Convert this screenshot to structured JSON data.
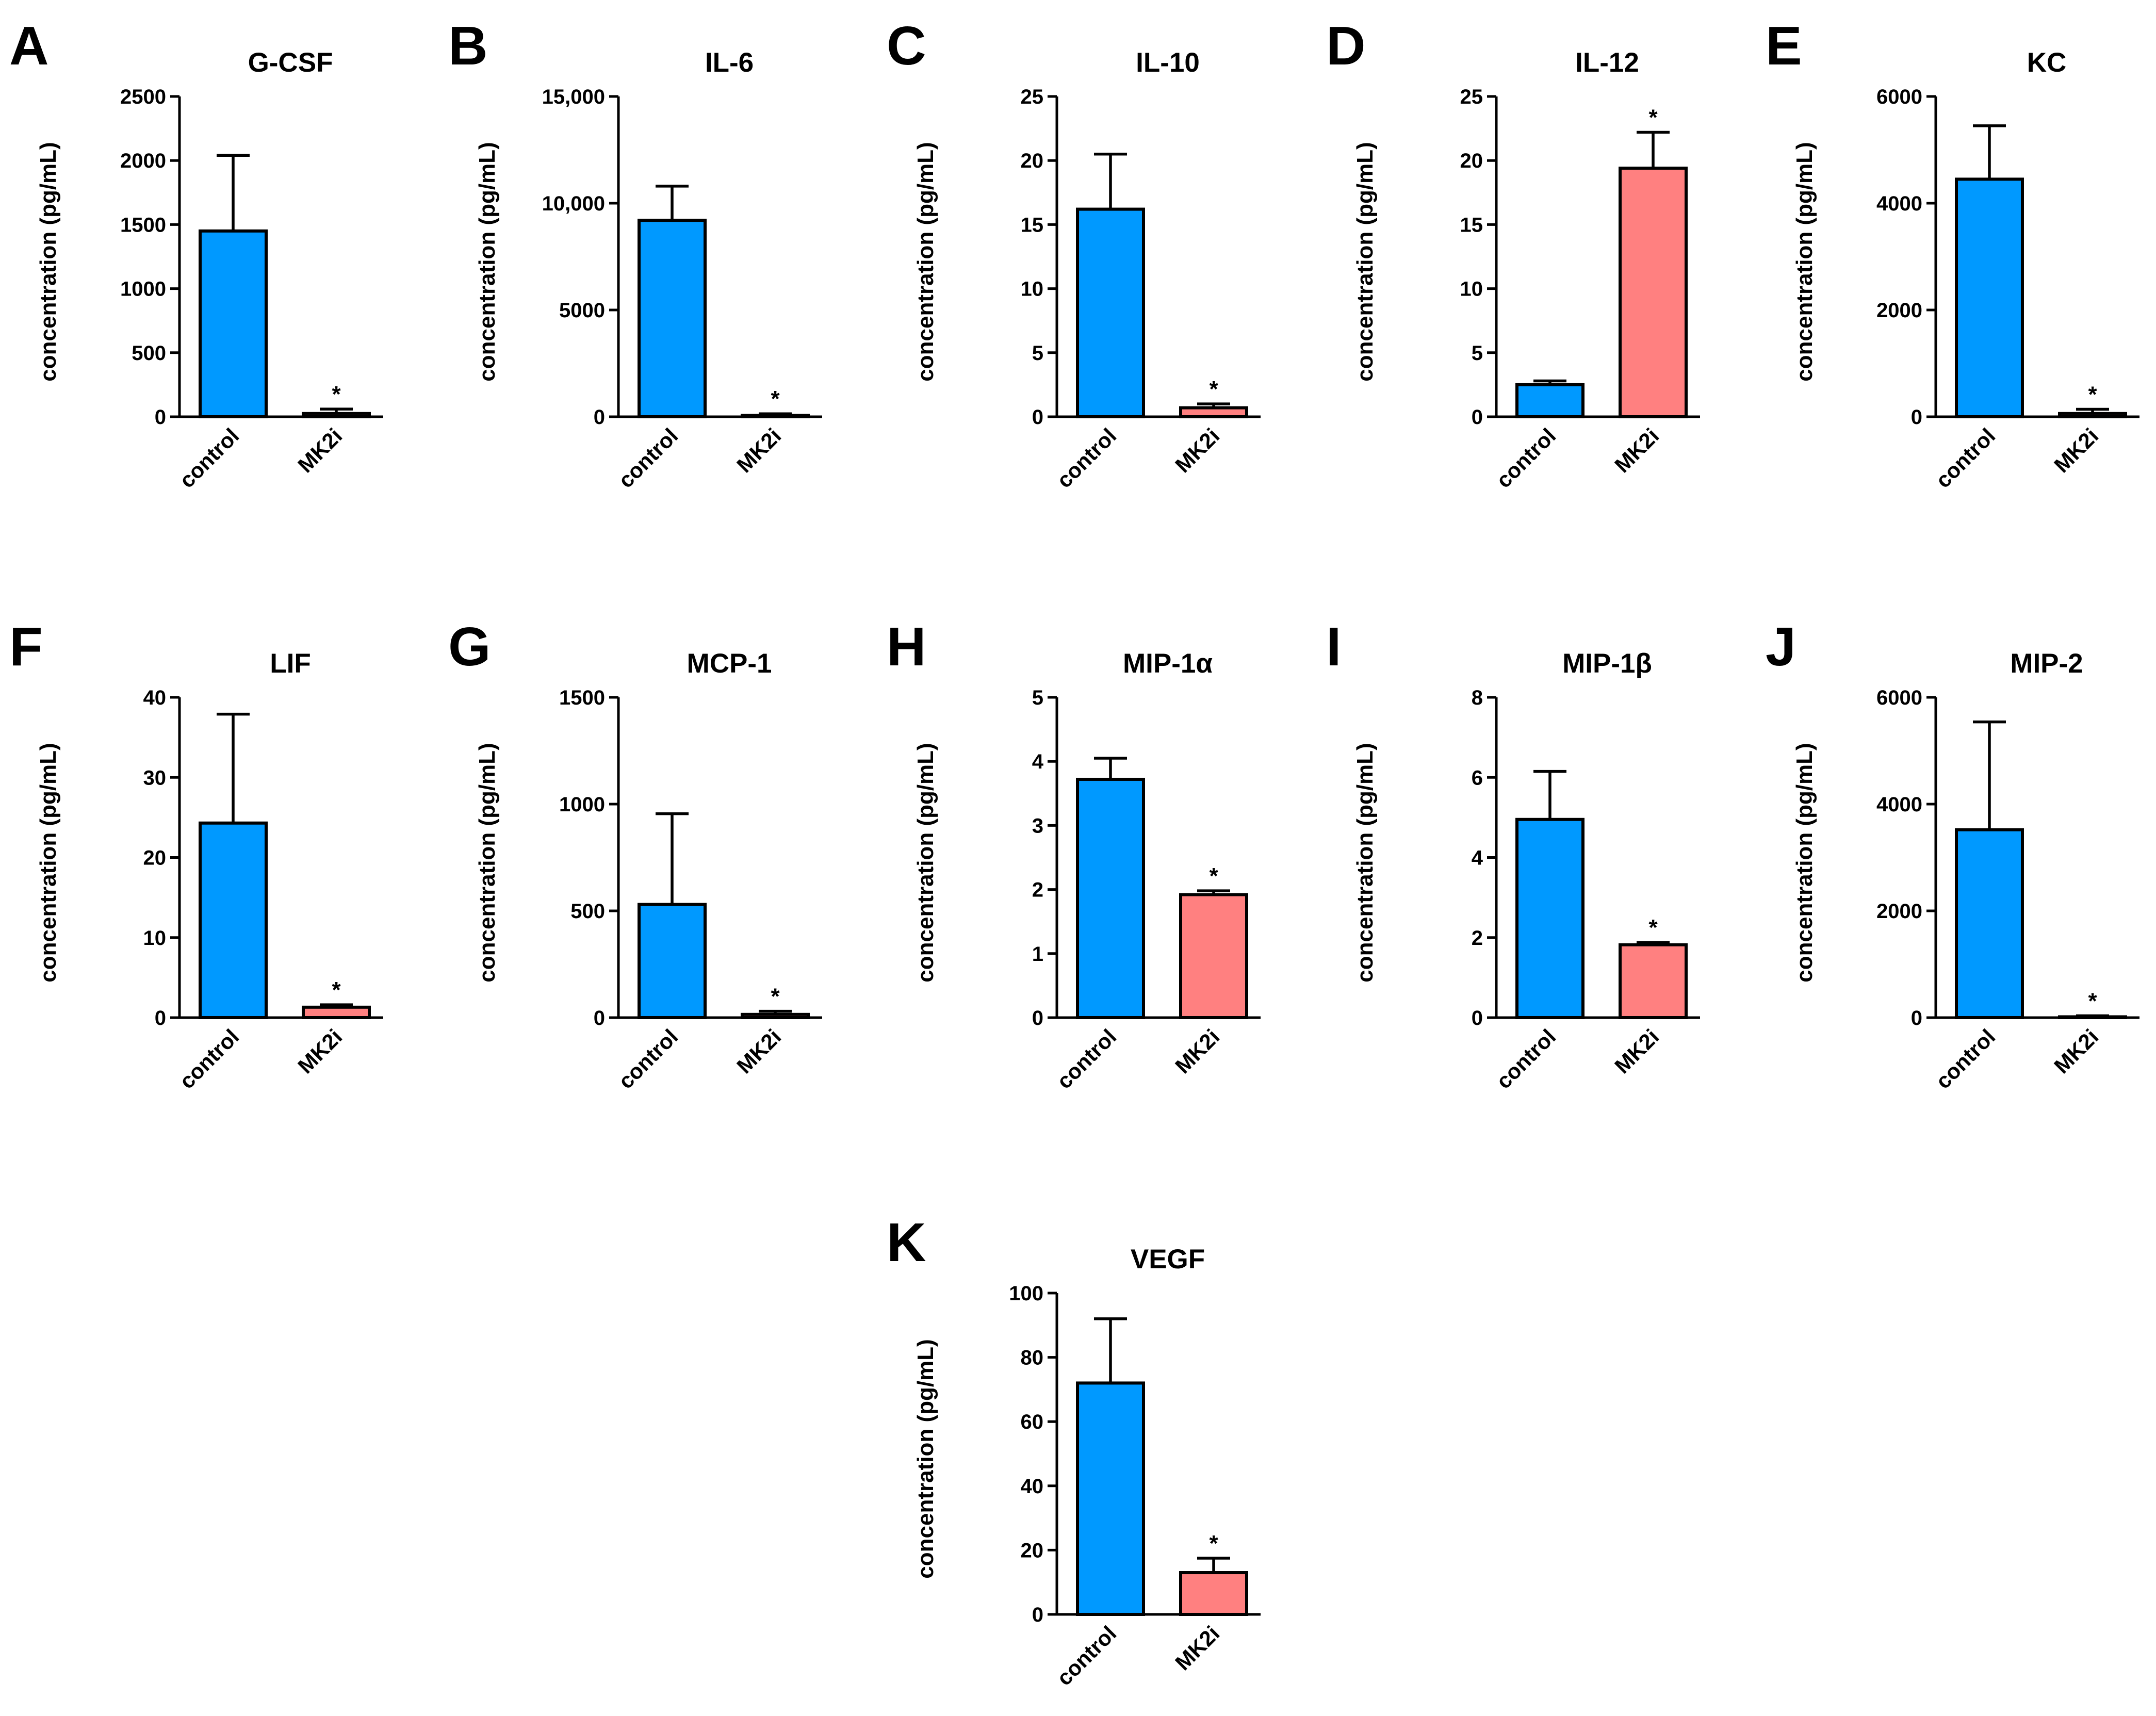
{
  "chart_data": [
    {
      "panel": "A",
      "type": "bar",
      "title": "G-CSF",
      "ylabel": "concentration (pg/mL)",
      "categories": [
        "control",
        "MK2i"
      ],
      "values": [
        1450,
        25
      ],
      "errors": [
        590,
        35
      ],
      "colors": [
        "#0099ff",
        "#ff8080"
      ],
      "ylim": [
        0,
        2500
      ],
      "yticks": [
        0,
        500,
        1000,
        1500,
        2000,
        2500
      ],
      "ytick_labels": [
        "0",
        "500",
        "1000",
        "1500",
        "2000",
        "2500"
      ],
      "significance": [
        "",
        "*"
      ]
    },
    {
      "panel": "B",
      "type": "bar",
      "title": "IL-6",
      "ylabel": "concentration (pg/mL)",
      "categories": [
        "control",
        "MK2i"
      ],
      "values": [
        9200,
        60
      ],
      "errors": [
        1600,
        80
      ],
      "colors": [
        "#0099ff",
        "#ff8080"
      ],
      "ylim": [
        0,
        15000
      ],
      "yticks": [
        0,
        5000,
        10000,
        15000
      ],
      "ytick_labels": [
        "0",
        "5000",
        "10,000",
        "15,000"
      ],
      "significance": [
        "",
        "*"
      ]
    },
    {
      "panel": "C",
      "type": "bar",
      "title": "IL-10",
      "ylabel": "concentration (pg/mL)",
      "categories": [
        "control",
        "MK2i"
      ],
      "values": [
        16.2,
        0.7
      ],
      "errors": [
        4.3,
        0.3
      ],
      "colors": [
        "#0099ff",
        "#ff8080"
      ],
      "ylim": [
        0,
        25
      ],
      "yticks": [
        0,
        5,
        10,
        15,
        20,
        25
      ],
      "ytick_labels": [
        "0",
        "5",
        "10",
        "15",
        "20",
        "25"
      ],
      "significance": [
        "",
        "*"
      ]
    },
    {
      "panel": "D",
      "type": "bar",
      "title": "IL-12",
      "ylabel": "concentration (pg/mL)",
      "categories": [
        "control",
        "MK2i"
      ],
      "values": [
        2.5,
        19.4
      ],
      "errors": [
        0.3,
        2.8
      ],
      "colors": [
        "#0099ff",
        "#ff8080"
      ],
      "ylim": [
        0,
        25
      ],
      "yticks": [
        0,
        5,
        10,
        15,
        20,
        25
      ],
      "ytick_labels": [
        "0",
        "5",
        "10",
        "15",
        "20",
        "25"
      ],
      "significance": [
        "",
        "*"
      ]
    },
    {
      "panel": "E",
      "type": "bar",
      "title": "KC",
      "ylabel": "concentration (pg/mL)",
      "categories": [
        "control",
        "MK2i"
      ],
      "values": [
        4450,
        60
      ],
      "errors": [
        1000,
        80
      ],
      "colors": [
        "#0099ff",
        "#ff8080"
      ],
      "ylim": [
        0,
        6000
      ],
      "yticks": [
        0,
        2000,
        4000,
        6000
      ],
      "ytick_labels": [
        "0",
        "2000",
        "4000",
        "6000"
      ],
      "significance": [
        "",
        "*"
      ]
    },
    {
      "panel": "F",
      "type": "bar",
      "title": "LIF",
      "ylabel": "concentration (pg/mL)",
      "categories": [
        "control",
        "MK2i"
      ],
      "values": [
        24.3,
        1.3
      ],
      "errors": [
        13.6,
        0.3
      ],
      "colors": [
        "#0099ff",
        "#ff8080"
      ],
      "ylim": [
        0,
        40
      ],
      "yticks": [
        0,
        10,
        20,
        30,
        40
      ],
      "ytick_labels": [
        "0",
        "10",
        "20",
        "30",
        "40"
      ],
      "significance": [
        "",
        "*"
      ]
    },
    {
      "panel": "G",
      "type": "bar",
      "title": "MCP-1",
      "ylabel": "concentration (pg/mL)",
      "categories": [
        "control",
        "MK2i"
      ],
      "values": [
        530,
        15
      ],
      "errors": [
        425,
        15
      ],
      "colors": [
        "#0099ff",
        "#ff8080"
      ],
      "ylim": [
        0,
        1500
      ],
      "yticks": [
        0,
        500,
        1000,
        1500
      ],
      "ytick_labels": [
        "0",
        "500",
        "1000",
        "1500"
      ],
      "significance": [
        "",
        "*"
      ]
    },
    {
      "panel": "H",
      "type": "bar",
      "title": "MIP-1α",
      "ylabel": "concentration (pg/mL)",
      "categories": [
        "control",
        "MK2i"
      ],
      "values": [
        3.72,
        1.92
      ],
      "errors": [
        0.33,
        0.06
      ],
      "colors": [
        "#0099ff",
        "#ff8080"
      ],
      "ylim": [
        0,
        5
      ],
      "yticks": [
        0,
        1,
        2,
        3,
        4,
        5
      ],
      "ytick_labels": [
        "0",
        "1",
        "2",
        "3",
        "4",
        "5"
      ],
      "significance": [
        "",
        "*"
      ]
    },
    {
      "panel": "I",
      "type": "bar",
      "title": "MIP-1β",
      "ylabel": "concentration (pg/mL)",
      "categories": [
        "control",
        "MK2i"
      ],
      "values": [
        4.95,
        1.82
      ],
      "errors": [
        1.2,
        0.06
      ],
      "colors": [
        "#0099ff",
        "#ff8080"
      ],
      "ylim": [
        0,
        8
      ],
      "yticks": [
        0,
        2,
        4,
        6,
        8
      ],
      "ytick_labels": [
        "0",
        "2",
        "4",
        "6",
        "8"
      ],
      "significance": [
        "",
        "*"
      ]
    },
    {
      "panel": "J",
      "type": "bar",
      "title": "MIP-2",
      "ylabel": "concentration (pg/mL)",
      "categories": [
        "control",
        "MK2i"
      ],
      "values": [
        3520,
        15
      ],
      "errors": [
        2020,
        20
      ],
      "colors": [
        "#0099ff",
        "#ff8080"
      ],
      "ylim": [
        0,
        6000
      ],
      "yticks": [
        0,
        2000,
        4000,
        6000
      ],
      "ytick_labels": [
        "0",
        "2000",
        "4000",
        "6000"
      ],
      "significance": [
        "",
        "*"
      ]
    },
    {
      "panel": "K",
      "type": "bar",
      "title": "VEGF",
      "ylabel": "concentration (pg/mL)",
      "categories": [
        "control",
        "MK2i"
      ],
      "values": [
        72,
        13
      ],
      "errors": [
        20,
        4.5
      ],
      "colors": [
        "#0099ff",
        "#ff8080"
      ],
      "ylim": [
        0,
        100
      ],
      "yticks": [
        0,
        20,
        40,
        60,
        80,
        100
      ],
      "ytick_labels": [
        "0",
        "20",
        "40",
        "60",
        "80",
        "100"
      ],
      "significance": [
        "",
        "*"
      ]
    }
  ]
}
